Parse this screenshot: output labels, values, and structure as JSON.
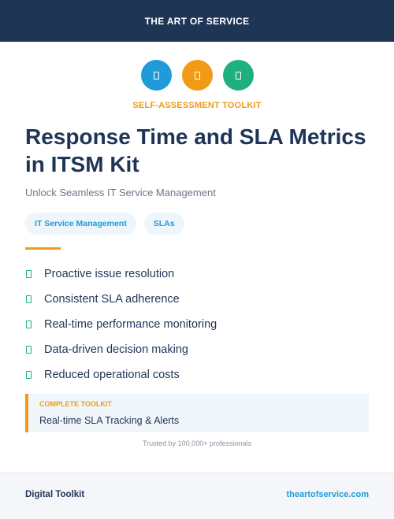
{
  "header": {
    "brand": "THE ART OF SERVICE",
    "background_color": "#1f3556"
  },
  "icons": [
    {
      "name": "blue-icon",
      "color": "#1e9bd8"
    },
    {
      "name": "orange-icon",
      "color": "#f09a16"
    },
    {
      "name": "green-icon",
      "color": "#1fb07f"
    }
  ],
  "hero": {
    "kicker": "SELF-ASSESSMENT TOOLKIT",
    "title": "Response Time and SLA Metrics in ITSM Kit",
    "subtitle": "Unlock Seamless IT Service Management"
  },
  "tags": [
    "IT Service Management",
    "SLAs"
  ],
  "features": [
    "Proactive issue resolution",
    "Consistent SLA adherence",
    "Real-time performance monitoring",
    "Data-driven decision making",
    "Reduced operational costs"
  ],
  "callout": {
    "kicker": "COMPLETE TOOLKIT",
    "text": "Real-time SLA Tracking & Alerts"
  },
  "trusted": "Trusted by 100,000+ professionals",
  "footer": {
    "left": "Digital Toolkit",
    "right": "theartofservice.com"
  },
  "colors": {
    "accent_orange": "#f09a16",
    "accent_blue": "#1e9bd8",
    "accent_green": "#1fb07f",
    "navy": "#1f3556"
  }
}
